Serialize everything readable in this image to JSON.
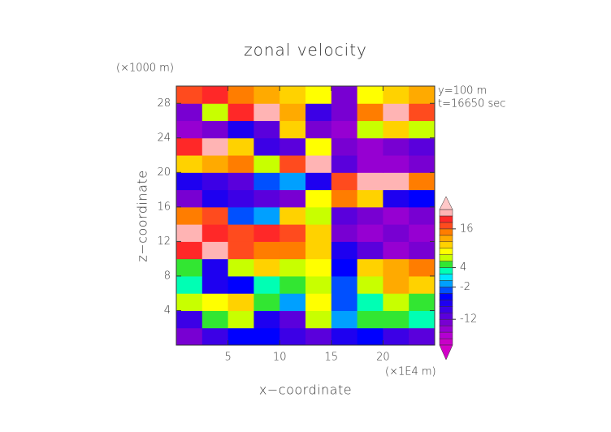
{
  "chart_data": {
    "type": "contour",
    "title": "zonal velocity",
    "x_label": "x−coordinate",
    "y_label": "z−coordinate",
    "x_unit": "(×1E4 m)",
    "y_unit": "(×1000 m)",
    "annotations": [
      "y=100 m",
      "t=16650 sec"
    ],
    "xlim": [
      0,
      25
    ],
    "ylim": [
      0,
      30
    ],
    "xticks": [
      5,
      10,
      15,
      20
    ],
    "yticks": [
      4,
      8,
      12,
      16,
      20,
      24,
      28
    ],
    "x": [
      1.25,
      3.75,
      6.25,
      8.75,
      11.25,
      13.75,
      16.25,
      18.75,
      21.25,
      23.75
    ],
    "y": [
      1,
      3,
      5,
      7,
      9,
      11,
      13,
      15,
      17,
      19,
      21,
      23,
      25,
      27,
      29
    ],
    "values": [
      [
        -14,
        -10,
        -6,
        -6,
        -10,
        -12,
        -8,
        -6,
        -10,
        -12
      ],
      [
        -10,
        4,
        6,
        -8,
        -12,
        6,
        -2,
        4,
        4,
        2
      ],
      [
        6,
        8,
        10,
        4,
        -2,
        8,
        -4,
        2,
        6,
        4
      ],
      [
        2,
        -8,
        -6,
        2,
        4,
        6,
        -4,
        6,
        12,
        10
      ],
      [
        4,
        -8,
        6,
        10,
        6,
        8,
        -6,
        10,
        12,
        14
      ],
      [
        18,
        20,
        16,
        14,
        14,
        10,
        -8,
        -12,
        -16,
        -14
      ],
      [
        20,
        18,
        16,
        18,
        16,
        10,
        -14,
        -16,
        -14,
        -16
      ],
      [
        14,
        16,
        -4,
        -2,
        10,
        6,
        -12,
        -14,
        -16,
        -14
      ],
      [
        -14,
        -8,
        -10,
        -12,
        -14,
        8,
        14,
        10,
        -8,
        -6
      ],
      [
        -8,
        -10,
        -12,
        -4,
        -2,
        -8,
        16,
        20,
        20,
        14
      ],
      [
        10,
        12,
        14,
        6,
        16,
        20,
        -12,
        -16,
        -16,
        -14
      ],
      [
        18,
        20,
        10,
        -10,
        -12,
        8,
        -14,
        -16,
        -14,
        -12
      ],
      [
        -16,
        -14,
        -8,
        -12,
        10,
        -14,
        -16,
        6,
        10,
        6
      ],
      [
        -14,
        6,
        18,
        20,
        12,
        -10,
        -14,
        14,
        20,
        16
      ],
      [
        16,
        18,
        14,
        12,
        10,
        8,
        -14,
        8,
        10,
        12
      ]
    ],
    "colorbar": {
      "lim": [
        -20,
        22
      ],
      "levels": [
        -20,
        -18,
        -16,
        -14,
        -12,
        -10,
        -8,
        -6,
        -4,
        -2,
        0,
        2,
        4,
        6,
        8,
        10,
        12,
        14,
        16,
        18,
        20,
        22
      ],
      "colors": [
        "#d200c8",
        "#c800c8",
        "#b400d2",
        "#9600d2",
        "#7800d2",
        "#5a00dc",
        "#3c00e6",
        "#1e00f0",
        "#0000ff",
        "#0050ff",
        "#00a0ff",
        "#00e6ff",
        "#00ffb4",
        "#32e632",
        "#c8ff00",
        "#ffff00",
        "#ffd200",
        "#ffaa00",
        "#ff7d00",
        "#ff4b1e",
        "#ff2828",
        "#ffb4b4",
        "#ffc8c8"
      ],
      "ticks": [
        -12,
        -2,
        4,
        16
      ]
    }
  }
}
